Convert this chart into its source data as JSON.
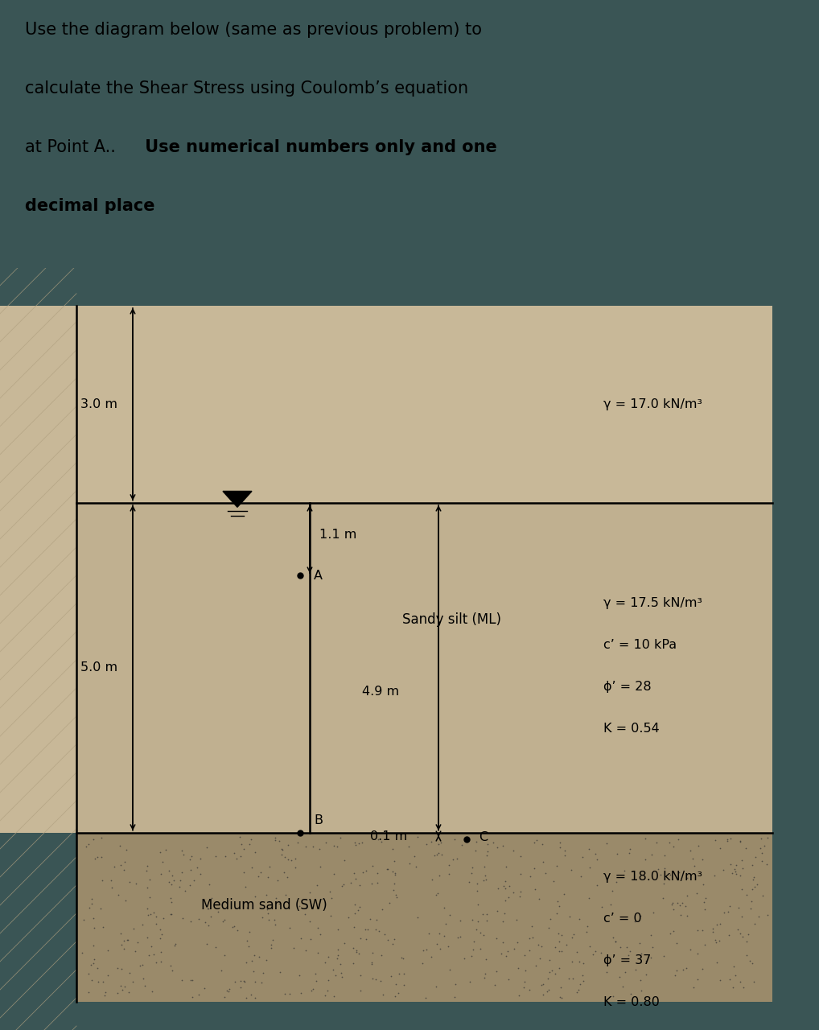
{
  "bg_color": "#3a5555",
  "title_bg": "#3a5555",
  "title_text_color": "black",
  "title_line1": "Use the diagram below (same as previous problem) to",
  "title_line2": "calculate the Shear Stress using Coulomb’s equation",
  "title_line3_normal": "at Point A..",
  "title_line3_bold": " Use numerical numbers only and one",
  "title_line4_bold": "decimal place",
  "upper_soil_color": "#c8b898",
  "silt_color": "#c0b090",
  "sand_color": "#9a8a6a",
  "title_box_color": "#d8cdb0",
  "label_3m": "3.0 m",
  "label_5m": "5.0 m",
  "label_1p1m": "1.1 m",
  "label_4p9m": "4.9 m",
  "label_0p1m": "0.1 m",
  "gamma1": "γ = 17.0 kN/m³",
  "gamma2": "γ = 17.5 kN/m³",
  "c_prime2": "c’ = 10 kPa",
  "phi2": "ϕ’ = 28",
  "K2": "K = 0.54",
  "gamma3": "γ = 18.0 kN/m³",
  "c_prime3": "c’ = 0",
  "phi3": "ϕ’ = 37",
  "K3": "K = 0.80",
  "sandy_silt": "Sandy silt (ML)",
  "medium_sand": "Medium sand (SW)",
  "point_A": "A",
  "point_B": "B",
  "point_C": "C"
}
